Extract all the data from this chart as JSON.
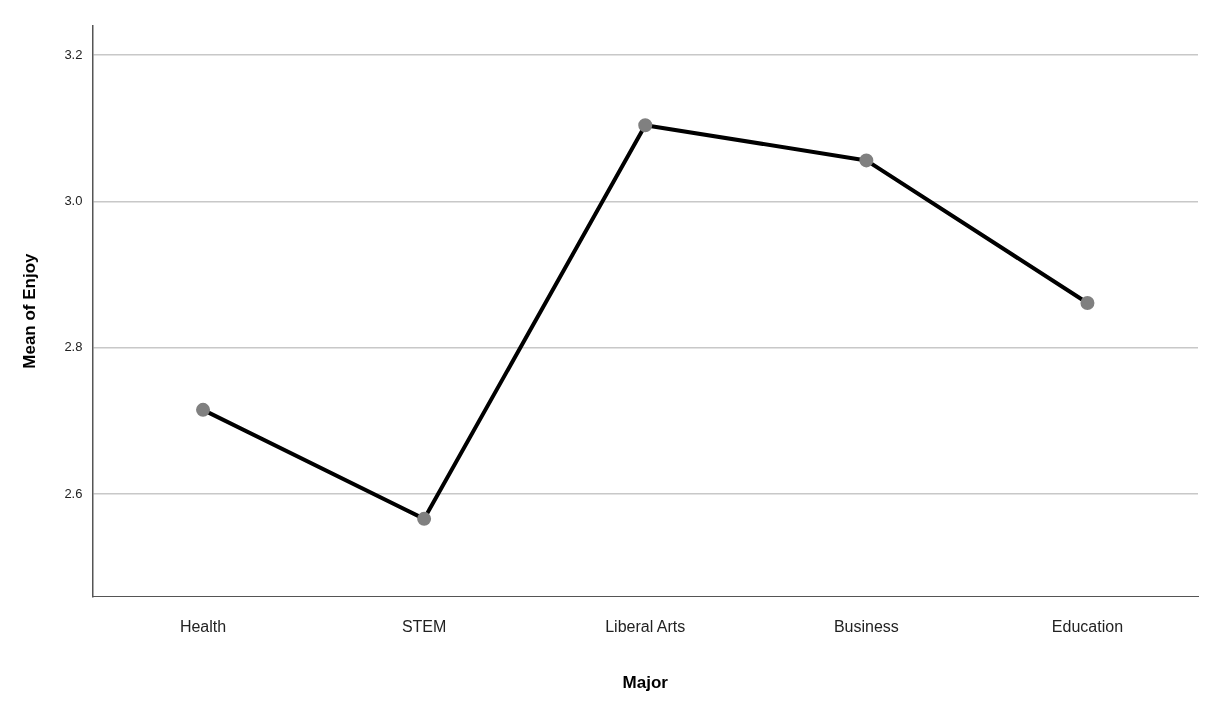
{
  "chart_data": {
    "type": "line",
    "xlabel": "Major",
    "ylabel": "Mean of Enjoy",
    "categories": [
      "Health",
      "STEM",
      "Liberal Arts",
      "Business",
      "Education"
    ],
    "series": [
      {
        "color": "#000000",
        "values": [
          2.715,
          2.566,
          3.104,
          3.056,
          2.861
        ]
      }
    ],
    "ylim": [
      2.46,
      3.24
    ],
    "yticks": [
      {
        "value": 2.6,
        "label": "2.6"
      },
      {
        "value": 2.8,
        "label": "2.8"
      },
      {
        "value": 3.0,
        "label": "3.0"
      },
      {
        "value": 3.2,
        "label": "3.2"
      }
    ],
    "grid": "y",
    "marker": "circle",
    "line_style": "solid",
    "legend": false
  }
}
